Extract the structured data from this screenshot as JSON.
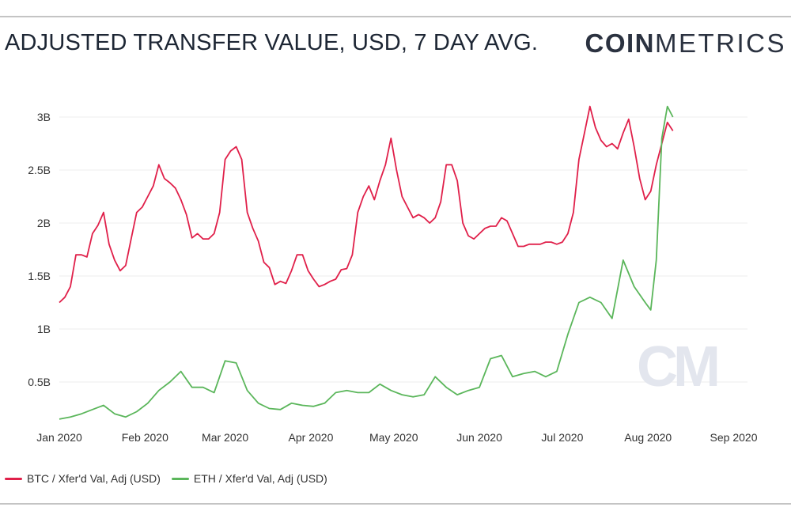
{
  "header": {
    "title": "ADJUSTED TRANSFER VALUE, USD, 7 DAY AVG.",
    "brand_bold": "COIN",
    "brand_thin": "METRICS"
  },
  "watermark": "CM",
  "chart_data": {
    "type": "line",
    "x_ticks": [
      "Jan 2020",
      "Feb 2020",
      "Mar 2020",
      "Apr 2020",
      "May 2020",
      "Jun 2020",
      "Jul 2020",
      "Aug 2020",
      "Sep 2020"
    ],
    "y_ticks": [
      "0.5B",
      "1B",
      "1.5B",
      "2B",
      "2.5B",
      "3B"
    ],
    "y_tick_values": [
      0.5,
      1,
      1.5,
      2,
      2.5,
      3
    ],
    "ylim": [
      0,
      3.25
    ],
    "xlim": [
      "2020-01-01",
      "2020-09-06"
    ],
    "grid": true,
    "legend_position": "bottom-left",
    "series": [
      {
        "name": "BTC / Xfer'd Val, Adj (USD)",
        "color": "#e0204a",
        "points": [
          [
            "2020-01-01",
            1.25
          ],
          [
            "2020-01-03",
            1.3
          ],
          [
            "2020-01-05",
            1.4
          ],
          [
            "2020-01-07",
            1.7
          ],
          [
            "2020-01-09",
            1.7
          ],
          [
            "2020-01-11",
            1.68
          ],
          [
            "2020-01-13",
            1.9
          ],
          [
            "2020-01-15",
            1.98
          ],
          [
            "2020-01-17",
            2.1
          ],
          [
            "2020-01-19",
            1.8
          ],
          [
            "2020-01-21",
            1.65
          ],
          [
            "2020-01-23",
            1.55
          ],
          [
            "2020-01-25",
            1.6
          ],
          [
            "2020-01-27",
            1.85
          ],
          [
            "2020-01-29",
            2.1
          ],
          [
            "2020-01-31",
            2.15
          ],
          [
            "2020-02-02",
            2.25
          ],
          [
            "2020-02-04",
            2.35
          ],
          [
            "2020-02-06",
            2.55
          ],
          [
            "2020-02-08",
            2.42
          ],
          [
            "2020-02-10",
            2.38
          ],
          [
            "2020-02-12",
            2.33
          ],
          [
            "2020-02-14",
            2.22
          ],
          [
            "2020-02-16",
            2.08
          ],
          [
            "2020-02-18",
            1.86
          ],
          [
            "2020-02-20",
            1.9
          ],
          [
            "2020-02-22",
            1.85
          ],
          [
            "2020-02-24",
            1.85
          ],
          [
            "2020-02-26",
            1.9
          ],
          [
            "2020-02-28",
            2.1
          ],
          [
            "2020-03-01",
            2.6
          ],
          [
            "2020-03-03",
            2.68
          ],
          [
            "2020-03-05",
            2.72
          ],
          [
            "2020-03-07",
            2.6
          ],
          [
            "2020-03-09",
            2.1
          ],
          [
            "2020-03-11",
            1.95
          ],
          [
            "2020-03-13",
            1.83
          ],
          [
            "2020-03-15",
            1.63
          ],
          [
            "2020-03-17",
            1.58
          ],
          [
            "2020-03-19",
            1.42
          ],
          [
            "2020-03-21",
            1.45
          ],
          [
            "2020-03-23",
            1.43
          ],
          [
            "2020-03-25",
            1.55
          ],
          [
            "2020-03-27",
            1.7
          ],
          [
            "2020-03-29",
            1.7
          ],
          [
            "2020-03-31",
            1.55
          ],
          [
            "2020-04-02",
            1.47
          ],
          [
            "2020-04-04",
            1.4
          ],
          [
            "2020-04-06",
            1.42
          ],
          [
            "2020-04-08",
            1.45
          ],
          [
            "2020-04-10",
            1.47
          ],
          [
            "2020-04-12",
            1.56
          ],
          [
            "2020-04-14",
            1.57
          ],
          [
            "2020-04-16",
            1.7
          ],
          [
            "2020-04-18",
            2.1
          ],
          [
            "2020-04-20",
            2.25
          ],
          [
            "2020-04-22",
            2.35
          ],
          [
            "2020-04-24",
            2.22
          ],
          [
            "2020-04-26",
            2.4
          ],
          [
            "2020-04-28",
            2.55
          ],
          [
            "2020-04-30",
            2.8
          ],
          [
            "2020-05-02",
            2.5
          ],
          [
            "2020-05-04",
            2.25
          ],
          [
            "2020-05-06",
            2.15
          ],
          [
            "2020-05-08",
            2.05
          ],
          [
            "2020-05-10",
            2.08
          ],
          [
            "2020-05-12",
            2.05
          ],
          [
            "2020-05-14",
            2.0
          ],
          [
            "2020-05-16",
            2.05
          ],
          [
            "2020-05-18",
            2.2
          ],
          [
            "2020-05-20",
            2.55
          ],
          [
            "2020-05-22",
            2.55
          ],
          [
            "2020-05-24",
            2.4
          ],
          [
            "2020-05-26",
            2.0
          ],
          [
            "2020-05-28",
            1.88
          ],
          [
            "2020-05-30",
            1.85
          ],
          [
            "2020-06-01",
            1.9
          ],
          [
            "2020-06-03",
            1.95
          ],
          [
            "2020-06-05",
            1.97
          ],
          [
            "2020-06-07",
            1.97
          ],
          [
            "2020-06-09",
            2.05
          ],
          [
            "2020-06-11",
            2.02
          ],
          [
            "2020-06-13",
            1.9
          ],
          [
            "2020-06-15",
            1.78
          ],
          [
            "2020-06-17",
            1.78
          ],
          [
            "2020-06-19",
            1.8
          ],
          [
            "2020-06-21",
            1.8
          ],
          [
            "2020-06-23",
            1.8
          ],
          [
            "2020-06-25",
            1.82
          ],
          [
            "2020-06-27",
            1.82
          ],
          [
            "2020-06-29",
            1.8
          ],
          [
            "2020-07-01",
            1.82
          ],
          [
            "2020-07-03",
            1.9
          ],
          [
            "2020-07-05",
            2.1
          ],
          [
            "2020-07-07",
            2.6
          ],
          [
            "2020-07-09",
            2.85
          ],
          [
            "2020-07-11",
            3.1
          ],
          [
            "2020-07-13",
            2.9
          ],
          [
            "2020-07-15",
            2.78
          ],
          [
            "2020-07-17",
            2.72
          ],
          [
            "2020-07-19",
            2.75
          ],
          [
            "2020-07-21",
            2.7
          ],
          [
            "2020-07-23",
            2.85
          ],
          [
            "2020-07-25",
            2.98
          ],
          [
            "2020-07-27",
            2.72
          ],
          [
            "2020-07-29",
            2.42
          ],
          [
            "2020-07-31",
            2.22
          ],
          [
            "2020-08-02",
            2.3
          ],
          [
            "2020-08-04",
            2.55
          ],
          [
            "2020-08-06",
            2.75
          ],
          [
            "2020-08-08",
            2.95
          ],
          [
            "2020-08-10",
            2.87
          ]
        ]
      },
      {
        "name": "ETH / Xfer'd Val, Adj (USD)",
        "color": "#5bb65b",
        "points": [
          [
            "2020-01-01",
            0.15
          ],
          [
            "2020-01-05",
            0.17
          ],
          [
            "2020-01-09",
            0.2
          ],
          [
            "2020-01-13",
            0.24
          ],
          [
            "2020-01-17",
            0.28
          ],
          [
            "2020-01-21",
            0.2
          ],
          [
            "2020-01-25",
            0.17
          ],
          [
            "2020-01-29",
            0.22
          ],
          [
            "2020-02-02",
            0.3
          ],
          [
            "2020-02-06",
            0.42
          ],
          [
            "2020-02-10",
            0.5
          ],
          [
            "2020-02-14",
            0.6
          ],
          [
            "2020-02-18",
            0.45
          ],
          [
            "2020-02-22",
            0.45
          ],
          [
            "2020-02-26",
            0.4
          ],
          [
            "2020-03-01",
            0.7
          ],
          [
            "2020-03-05",
            0.68
          ],
          [
            "2020-03-09",
            0.42
          ],
          [
            "2020-03-13",
            0.3
          ],
          [
            "2020-03-17",
            0.25
          ],
          [
            "2020-03-21",
            0.24
          ],
          [
            "2020-03-25",
            0.3
          ],
          [
            "2020-03-29",
            0.28
          ],
          [
            "2020-04-02",
            0.27
          ],
          [
            "2020-04-06",
            0.3
          ],
          [
            "2020-04-10",
            0.4
          ],
          [
            "2020-04-14",
            0.42
          ],
          [
            "2020-04-18",
            0.4
          ],
          [
            "2020-04-22",
            0.4
          ],
          [
            "2020-04-26",
            0.48
          ],
          [
            "2020-04-30",
            0.42
          ],
          [
            "2020-05-04",
            0.38
          ],
          [
            "2020-05-08",
            0.36
          ],
          [
            "2020-05-12",
            0.38
          ],
          [
            "2020-05-16",
            0.55
          ],
          [
            "2020-05-20",
            0.45
          ],
          [
            "2020-05-24",
            0.38
          ],
          [
            "2020-05-28",
            0.42
          ],
          [
            "2020-06-01",
            0.45
          ],
          [
            "2020-06-05",
            0.72
          ],
          [
            "2020-06-09",
            0.75
          ],
          [
            "2020-06-13",
            0.55
          ],
          [
            "2020-06-17",
            0.58
          ],
          [
            "2020-06-21",
            0.6
          ],
          [
            "2020-06-25",
            0.55
          ],
          [
            "2020-06-29",
            0.6
          ],
          [
            "2020-07-03",
            0.95
          ],
          [
            "2020-07-07",
            1.25
          ],
          [
            "2020-07-11",
            1.3
          ],
          [
            "2020-07-15",
            1.25
          ],
          [
            "2020-07-19",
            1.1
          ],
          [
            "2020-07-23",
            1.65
          ],
          [
            "2020-07-27",
            1.4
          ],
          [
            "2020-07-31",
            1.25
          ],
          [
            "2020-08-02",
            1.18
          ],
          [
            "2020-08-04",
            1.65
          ],
          [
            "2020-08-06",
            2.8
          ],
          [
            "2020-08-08",
            3.1
          ],
          [
            "2020-08-10",
            3.0
          ]
        ]
      }
    ]
  }
}
